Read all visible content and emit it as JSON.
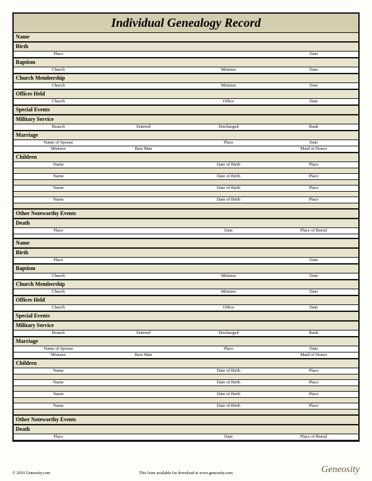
{
  "title": "Individual Genealogy Record",
  "colors": {
    "title_bg": "#d4cdb0",
    "section_bg": "#e8e3cc",
    "border": "#1a1a1a",
    "page_bg": "#fdfdfa"
  },
  "typography": {
    "title_fontsize": 18,
    "section_fontsize": 8,
    "field_fontsize": 6.5,
    "font_family": "Georgia, Times New Roman, serif"
  },
  "record": {
    "sections": [
      {
        "label": "Name",
        "rows": []
      },
      {
        "label": "Birth",
        "rows": [
          [
            "Place",
            "",
            "",
            "Date"
          ]
        ]
      },
      {
        "label": "Baptism",
        "rows": [
          [
            "Church",
            "",
            "Minister",
            "Date"
          ]
        ]
      },
      {
        "label": "Church Membership",
        "rows": [
          [
            "Church",
            "",
            "Minister",
            "Date"
          ]
        ]
      },
      {
        "label": "Offices Held",
        "rows": [
          [
            "Church",
            "",
            "Office",
            "Date"
          ]
        ]
      },
      {
        "label": "Special Events",
        "rows": []
      },
      {
        "label": "Military Service",
        "rows": [
          [
            "Branch",
            "Entered",
            "Discharged",
            "Rank"
          ]
        ]
      },
      {
        "label": "Marriage",
        "rows": [
          [
            "Name of Spouse",
            "",
            "Place",
            "Date"
          ],
          [
            "Minister",
            "Best Man",
            "",
            "Maid of Honor"
          ]
        ]
      },
      {
        "label": "Children",
        "rows": [
          [
            "Name",
            "",
            "Date of Birth",
            "Place"
          ],
          [
            "Name",
            "",
            "Date of Birth",
            "Place"
          ],
          [
            "Name",
            "",
            "Date of Birth",
            "Place"
          ],
          [
            "Name",
            "",
            "Date of Birth",
            "Place"
          ]
        ]
      },
      {
        "label": "Other Noteworthy Events",
        "rows": []
      },
      {
        "label": "Death",
        "rows": [
          [
            "Place",
            "",
            "Date",
            "Place of Burial"
          ]
        ]
      }
    ]
  },
  "footer": {
    "copyright": "© 2010 Geneosity.com",
    "note": "This form available for download at www.geneosity.com",
    "logo": "Geneosity"
  }
}
